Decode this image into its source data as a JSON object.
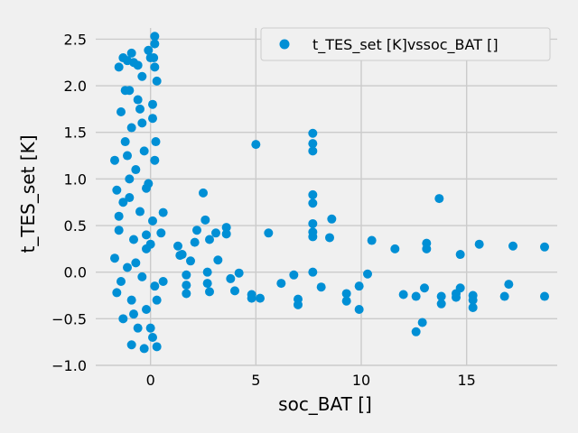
{
  "chart_data": {
    "type": "scatter",
    "title": "",
    "xlabel": "soc_BAT []",
    "ylabel": "t_TES_set [K]",
    "xlim": [
      -2.6,
      19.3
    ],
    "ylim": [
      -1.0,
      2.62
    ],
    "xticks": [
      0,
      5,
      10,
      15
    ],
    "yticks": [
      -1.0,
      -0.5,
      0.0,
      0.5,
      1.0,
      1.5,
      2.0,
      2.5
    ],
    "xtick_labels": [
      "0",
      "5",
      "10",
      "15"
    ],
    "ytick_labels": [
      "−1.0",
      "−0.5",
      "0.0",
      "0.5",
      "1.0",
      "1.5",
      "2.0",
      "2.5"
    ],
    "grid": true,
    "legend_position": "top-right",
    "colors": {
      "series": "#008fd5",
      "background": "#f0f0f0",
      "grid": "#cbcbcb"
    },
    "series": [
      {
        "name": "t_TES_set [K]vssoc_BAT []",
        "points": [
          [
            0.2,
            2.53
          ],
          [
            0.2,
            2.45
          ],
          [
            -0.1,
            2.38
          ],
          [
            -1.3,
            2.3
          ],
          [
            -0.8,
            2.25
          ],
          [
            -1.5,
            2.2
          ],
          [
            -0.4,
            2.1
          ],
          [
            0.3,
            2.05
          ],
          [
            -1.0,
            1.95
          ],
          [
            -0.6,
            1.85
          ],
          [
            -1.4,
            1.72
          ],
          [
            0.1,
            1.65
          ],
          [
            -0.9,
            1.55
          ],
          [
            -1.2,
            1.4
          ],
          [
            -0.3,
            1.3
          ],
          [
            0.2,
            1.2
          ],
          [
            -1.7,
            1.2
          ],
          [
            -0.7,
            1.1
          ],
          [
            -1.0,
            1.0
          ],
          [
            -0.2,
            0.9
          ],
          [
            -1.6,
            0.88
          ],
          [
            -1.3,
            0.75
          ],
          [
            -0.5,
            0.65
          ],
          [
            0.1,
            0.55
          ],
          [
            -1.5,
            0.45
          ],
          [
            -0.8,
            0.35
          ],
          [
            -0.2,
            0.25
          ],
          [
            -1.7,
            0.15
          ],
          [
            -1.1,
            0.05
          ],
          [
            -0.4,
            -0.05
          ],
          [
            0.2,
            -0.15
          ],
          [
            -1.6,
            -0.22
          ],
          [
            -0.9,
            -0.3
          ],
          [
            -0.2,
            -0.4
          ],
          [
            -1.3,
            -0.5
          ],
          [
            -0.6,
            -0.6
          ],
          [
            0.1,
            -0.7
          ],
          [
            -0.9,
            -0.78
          ],
          [
            -0.3,
            -0.82
          ],
          [
            0.3,
            -0.8
          ],
          [
            -1.1,
            2.27
          ],
          [
            0.0,
            2.3
          ],
          [
            -0.5,
            1.75
          ],
          [
            -1.2,
            1.95
          ],
          [
            0.25,
            1.4
          ],
          [
            -0.1,
            0.95
          ],
          [
            -1.5,
            0.6
          ],
          [
            -0.7,
            0.1
          ],
          [
            0.3,
            -0.3
          ],
          [
            -1.4,
            -0.1
          ],
          [
            0.0,
            0.3
          ],
          [
            -1.0,
            0.8
          ],
          [
            0.1,
            1.8
          ],
          [
            -0.6,
            2.22
          ],
          [
            0.2,
            2.2
          ],
          [
            -0.4,
            1.6
          ],
          [
            -1.1,
            1.25
          ],
          [
            -0.2,
            0.4
          ],
          [
            -0.8,
            -0.45
          ],
          [
            0.0,
            -0.6
          ],
          [
            0.15,
            2.3
          ],
          [
            -0.9,
            2.35
          ],
          [
            0.5,
            0.42
          ],
          [
            0.6,
            0.64
          ],
          [
            0.6,
            -0.1
          ],
          [
            1.3,
            0.28
          ],
          [
            1.4,
            0.18
          ],
          [
            1.5,
            0.19
          ],
          [
            1.7,
            -0.03
          ],
          [
            1.7,
            -0.14
          ],
          [
            1.7,
            -0.23
          ],
          [
            1.9,
            0.12
          ],
          [
            2.1,
            0.32
          ],
          [
            2.2,
            0.45
          ],
          [
            2.5,
            0.85
          ],
          [
            2.6,
            0.56
          ],
          [
            2.7,
            -0.12
          ],
          [
            2.7,
            0.0
          ],
          [
            2.8,
            0.35
          ],
          [
            2.8,
            -0.21
          ],
          [
            3.1,
            0.42
          ],
          [
            3.2,
            0.13
          ],
          [
            3.6,
            0.48
          ],
          [
            3.6,
            0.41
          ],
          [
            3.8,
            -0.07
          ],
          [
            4.0,
            -0.2
          ],
          [
            4.2,
            -0.01
          ],
          [
            4.8,
            -0.24
          ],
          [
            4.8,
            -0.28
          ],
          [
            5.0,
            1.37
          ],
          [
            5.2,
            -0.28
          ],
          [
            5.6,
            0.42
          ],
          [
            6.2,
            -0.12
          ],
          [
            6.8,
            -0.03
          ],
          [
            7.0,
            -0.29
          ],
          [
            7.0,
            -0.35
          ],
          [
            7.7,
            1.49
          ],
          [
            7.7,
            1.38
          ],
          [
            7.7,
            1.3
          ],
          [
            7.7,
            0.83
          ],
          [
            7.7,
            0.74
          ],
          [
            7.7,
            0.52
          ],
          [
            7.7,
            0.43
          ],
          [
            7.7,
            0.38
          ],
          [
            7.7,
            0.0
          ],
          [
            8.1,
            -0.16
          ],
          [
            8.5,
            0.37
          ],
          [
            8.6,
            0.57
          ],
          [
            9.3,
            -0.23
          ],
          [
            9.3,
            -0.31
          ],
          [
            9.9,
            -0.15
          ],
          [
            9.9,
            -0.4
          ],
          [
            10.3,
            -0.02
          ],
          [
            10.5,
            0.34
          ],
          [
            11.6,
            0.25
          ],
          [
            12.0,
            -0.24
          ],
          [
            12.6,
            -0.26
          ],
          [
            12.6,
            -0.64
          ],
          [
            12.9,
            -0.54
          ],
          [
            13.0,
            -0.17
          ],
          [
            13.1,
            0.31
          ],
          [
            13.1,
            0.25
          ],
          [
            13.7,
            0.79
          ],
          [
            13.8,
            -0.26
          ],
          [
            13.8,
            -0.34
          ],
          [
            14.5,
            -0.23
          ],
          [
            14.5,
            -0.27
          ],
          [
            14.7,
            -0.17
          ],
          [
            14.7,
            0.19
          ],
          [
            15.3,
            -0.25
          ],
          [
            15.3,
            -0.3
          ],
          [
            15.3,
            -0.38
          ],
          [
            15.6,
            0.3
          ],
          [
            16.8,
            -0.26
          ],
          [
            17.0,
            -0.13
          ],
          [
            17.2,
            0.28
          ],
          [
            18.7,
            0.27
          ],
          [
            18.7,
            -0.26
          ]
        ]
      }
    ]
  }
}
